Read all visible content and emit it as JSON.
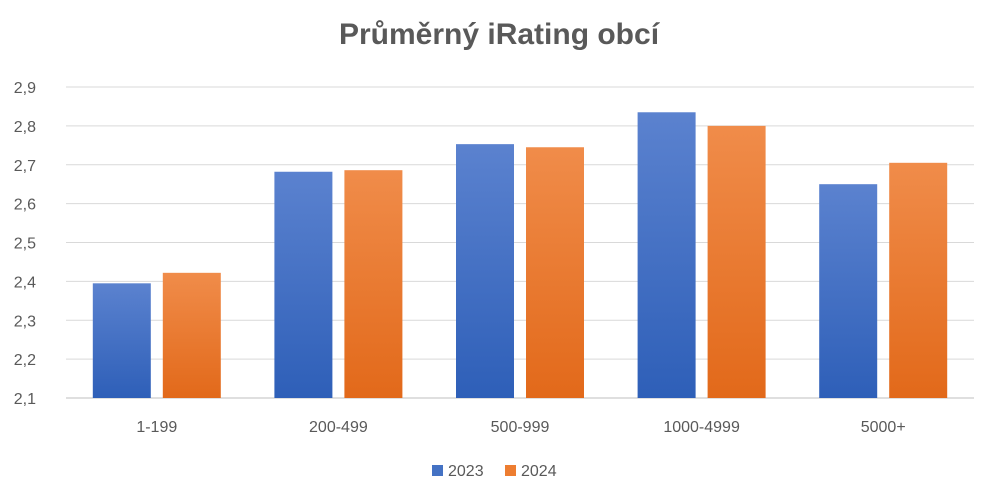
{
  "chart_data": {
    "type": "bar",
    "title": "Průměrný iRating obcí",
    "categories": [
      "1-199",
      "200-499",
      "500-999",
      "1000-4999",
      "5000+"
    ],
    "series": [
      {
        "name": "2023",
        "values": [
          2.395,
          2.682,
          2.753,
          2.835,
          2.65
        ],
        "color": "#4472C4"
      },
      {
        "name": "2024",
        "values": [
          2.422,
          2.686,
          2.745,
          2.8,
          2.705
        ],
        "color": "#ED7D31"
      }
    ],
    "ylim": [
      2.1,
      2.9
    ],
    "yticks": [
      "2,1",
      "2,2",
      "2,3",
      "2,4",
      "2,5",
      "2,6",
      "2,7",
      "2,8",
      "2,9"
    ],
    "grid": true,
    "legend_position": "bottom"
  }
}
